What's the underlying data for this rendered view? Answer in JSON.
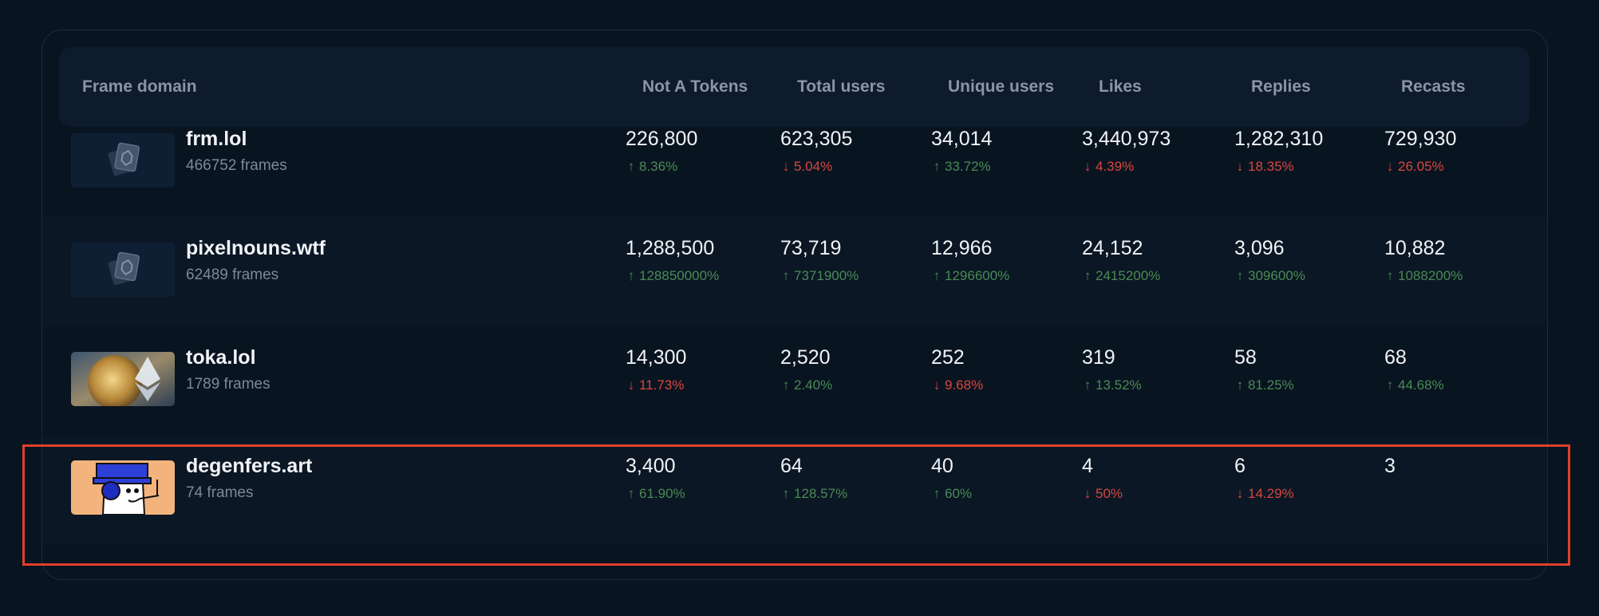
{
  "columns": [
    "Frame domain",
    "Not A Tokens",
    "Total users",
    "Unique users",
    "Likes",
    "Replies",
    "Recasts"
  ],
  "colors": {
    "up": "#4a8a54",
    "down": "#d8473d",
    "highlight": "#e0402a"
  },
  "rows": [
    {
      "domain": "frm.lol",
      "frames": "466752 frames",
      "thumb": "frame-placeholder-icon",
      "cells": [
        {
          "value": "226,800",
          "change": "8.36%",
          "dir": "up"
        },
        {
          "value": "623,305",
          "change": "5.04%",
          "dir": "down"
        },
        {
          "value": "34,014",
          "change": "33.72%",
          "dir": "up"
        },
        {
          "value": "3,440,973",
          "change": "4.39%",
          "dir": "down"
        },
        {
          "value": "1,282,310",
          "change": "18.35%",
          "dir": "down"
        },
        {
          "value": "729,930",
          "change": "26.05%",
          "dir": "down"
        }
      ]
    },
    {
      "domain": "pixelnouns.wtf",
      "frames": "62489 frames",
      "thumb": "frame-placeholder-icon",
      "cells": [
        {
          "value": "1,288,500",
          "change": "128850000%",
          "dir": "up"
        },
        {
          "value": "73,719",
          "change": "7371900%",
          "dir": "up"
        },
        {
          "value": "12,966",
          "change": "1296600%",
          "dir": "up"
        },
        {
          "value": "24,152",
          "change": "2415200%",
          "dir": "up"
        },
        {
          "value": "3,096",
          "change": "309600%",
          "dir": "up"
        },
        {
          "value": "10,882",
          "change": "1088200%",
          "dir": "up"
        }
      ]
    },
    {
      "domain": "toka.lol",
      "frames": "1789 frames",
      "thumb": "ethereum-coin-image",
      "cells": [
        {
          "value": "14,300",
          "change": "11.73%",
          "dir": "down"
        },
        {
          "value": "2,520",
          "change": "2.40%",
          "dir": "up"
        },
        {
          "value": "252",
          "change": "9.68%",
          "dir": "down"
        },
        {
          "value": "319",
          "change": "13.52%",
          "dir": "up"
        },
        {
          "value": "58",
          "change": "81.25%",
          "dir": "up"
        },
        {
          "value": "68",
          "change": "44.68%",
          "dir": "up"
        }
      ]
    },
    {
      "domain": "degenfers.art",
      "frames": "74 frames",
      "thumb": "degenfers-character-image",
      "cells": [
        {
          "value": "3,400",
          "change": "61.90%",
          "dir": "up"
        },
        {
          "value": "64",
          "change": "128.57%",
          "dir": "up"
        },
        {
          "value": "40",
          "change": "60%",
          "dir": "up"
        },
        {
          "value": "4",
          "change": "50%",
          "dir": "down"
        },
        {
          "value": "6",
          "change": "14.29%",
          "dir": "down"
        },
        {
          "value": "3",
          "change": "",
          "dir": ""
        }
      ]
    }
  ]
}
